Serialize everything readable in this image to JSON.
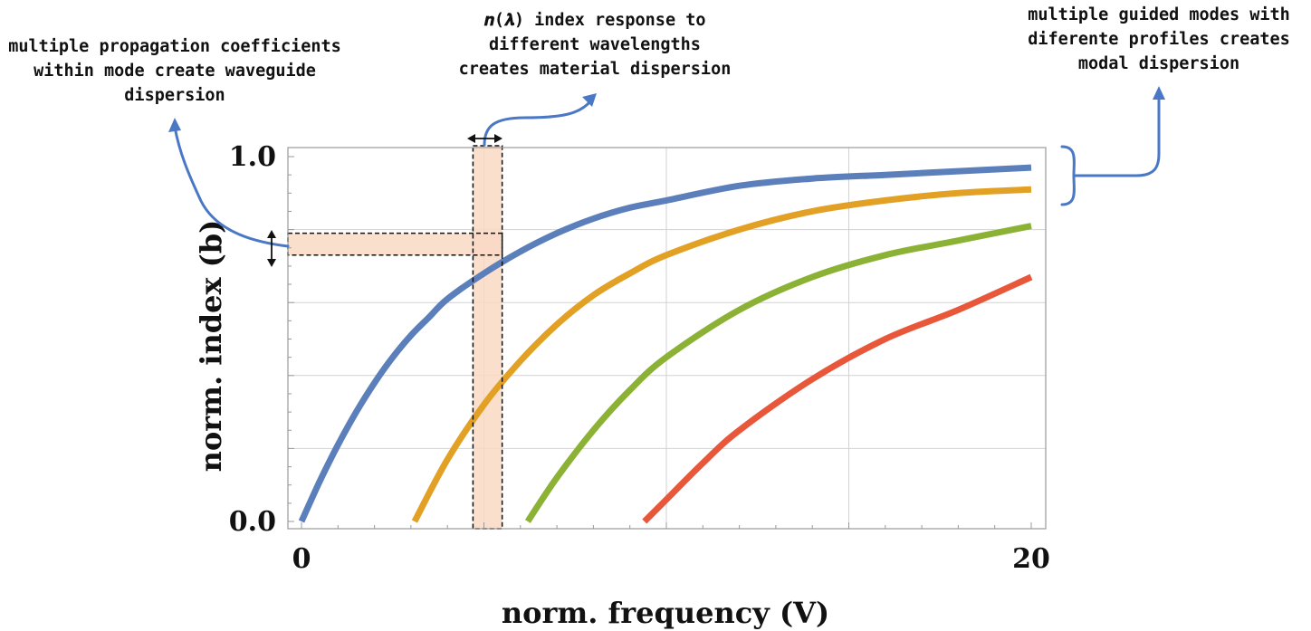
{
  "chart_data": {
    "type": "line",
    "xlabel": "norm. frequency (V)",
    "ylabel": "norm. index (b)",
    "xlim": [
      0,
      20
    ],
    "ylim": [
      0,
      1
    ],
    "x_ticks": [
      "0",
      "20"
    ],
    "y_ticks": [
      "0.0",
      "1.0"
    ],
    "grid": true,
    "series": [
      {
        "color": "#5b7fba",
        "points": [
          [
            0,
            0
          ],
          [
            0.5,
            0.11
          ],
          [
            1,
            0.21
          ],
          [
            1.5,
            0.3
          ],
          [
            2,
            0.38
          ],
          [
            2.5,
            0.45
          ],
          [
            3,
            0.51
          ],
          [
            3.5,
            0.56
          ],
          [
            4,
            0.61
          ],
          [
            5,
            0.68
          ],
          [
            6,
            0.74
          ],
          [
            7,
            0.79
          ],
          [
            8,
            0.83
          ],
          [
            9,
            0.86
          ],
          [
            10,
            0.88
          ],
          [
            12,
            0.92
          ],
          [
            14,
            0.94
          ],
          [
            16,
            0.95
          ],
          [
            18,
            0.96
          ],
          [
            20,
            0.97
          ]
        ]
      },
      {
        "color": "#e2a024",
        "points": [
          [
            3.1,
            0
          ],
          [
            4,
            0.17
          ],
          [
            5,
            0.32
          ],
          [
            6,
            0.44
          ],
          [
            7,
            0.54
          ],
          [
            8,
            0.62
          ],
          [
            9,
            0.68
          ],
          [
            10,
            0.73
          ],
          [
            12,
            0.8
          ],
          [
            14,
            0.85
          ],
          [
            16,
            0.88
          ],
          [
            18,
            0.9
          ],
          [
            20,
            0.91
          ]
        ]
      },
      {
        "color": "#8cb235",
        "points": [
          [
            6.2,
            0
          ],
          [
            7,
            0.12
          ],
          [
            8,
            0.25
          ],
          [
            9,
            0.36
          ],
          [
            10,
            0.45
          ],
          [
            12,
            0.58
          ],
          [
            14,
            0.67
          ],
          [
            16,
            0.73
          ],
          [
            18,
            0.77
          ],
          [
            20,
            0.81
          ]
        ]
      },
      {
        "color": "#e8573a",
        "points": [
          [
            9.4,
            0
          ],
          [
            10,
            0.06
          ],
          [
            11,
            0.16
          ],
          [
            12,
            0.25
          ],
          [
            14,
            0.39
          ],
          [
            16,
            0.5
          ],
          [
            18,
            0.58
          ],
          [
            20,
            0.67
          ]
        ]
      }
    ],
    "highlights": {
      "fill": "#f9d9c4",
      "horizontal_band_b": [
        0.73,
        0.79
      ],
      "vertical_band_V": [
        4.7,
        5.5
      ]
    },
    "annotations": [
      {
        "lines": [
          "multiple propagation coefficients",
          "within mode create waveguide",
          "dispersion"
        ]
      },
      {
        "lines": [
          "𝒏(𝝀) index response to",
          "different wavelengths",
          "creates material dispersion"
        ]
      },
      {
        "lines": [
          "multiple guided modes with",
          "diferente profiles creates",
          "modal dispersion"
        ]
      }
    ],
    "arrow_color": "#4a78c4"
  }
}
